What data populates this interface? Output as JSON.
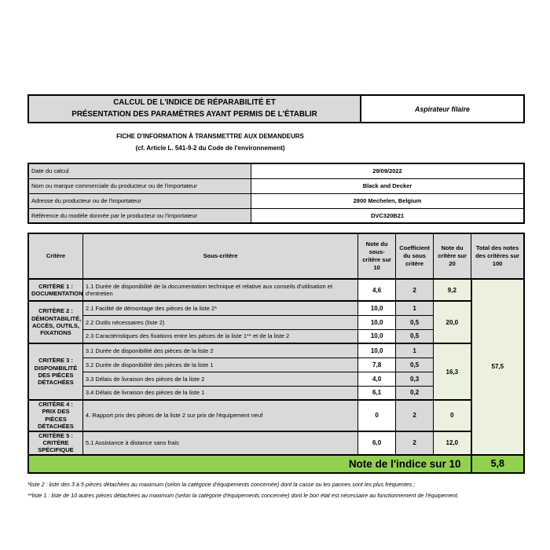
{
  "header": {
    "title_line1": "CALCUL DE L'INDICE DE RÉPARABILITÉ ET",
    "title_line2": "PRÉSENTATION DES PARAMÈTRES AYANT PERMIS DE L'ÉTABLIR",
    "product_category": "Aspirateur filaire",
    "subtitle_line1": "FICHE D'INFORMATION À TRANSMETTRE AUX DEMANDEURS",
    "subtitle_line2": "(cf. Article L. 541-9-2 du Code de l'environnement)"
  },
  "info": {
    "rows": [
      {
        "label": "Date du calcul",
        "value": "29/09/2022"
      },
      {
        "label": "Nom ou marque commerciale du producteur ou de l'importateur",
        "value": "Black and Decker"
      },
      {
        "label": "Adresse du producteur ou de l'importateur",
        "value": "2800 Mechelen, Belgium"
      },
      {
        "label": "Référence du modèle donnée par le producteur ou l'importateur",
        "value": "DVC320B21"
      }
    ]
  },
  "table": {
    "headers": {
      "critere": "Critère",
      "sous_critere": "Sous-critère",
      "note_sous": "Note du sous-critère sur 10",
      "coeff": "Coefficient du sous critère",
      "note20": "Note du critère sur 20",
      "total": "Total des notes des critères sur 100"
    },
    "criteria": [
      {
        "label": "CRITÈRE 1 : DOCUMENTATION",
        "note_sur_20": "9,2",
        "subs": [
          {
            "text": "1.1 Durée de disponibilité de la documentation technique et relative aux conseils d'utilisation et d'entretien",
            "note": "4,6",
            "coeff": "2"
          }
        ]
      },
      {
        "label": "CRITÈRE 2 : DÉMONTABILITÉ, ACCÈS, OUTILS, FIXATIONS",
        "note_sur_20": "20,0",
        "subs": [
          {
            "text": "2.1 Facilité de démontage des pièces de la liste 2*",
            "note": "10,0",
            "coeff": "1"
          },
          {
            "text": "2.2 Outils nécessaires (liste 2)",
            "note": "10,0",
            "coeff": "0,5"
          },
          {
            "text": "2.3 Caractéristiques des fixations entre les pièces de la liste 1** et de la liste 2",
            "note": "10,0",
            "coeff": "0,5"
          }
        ]
      },
      {
        "label": "CRITÈRE 3 : DISPONIBILITÉ DES PIÈCES DÉTACHÉES",
        "note_sur_20": "16,3",
        "subs": [
          {
            "text": "3.1 Durée de disponibilité des pièces de la liste 2",
            "note": "10,0",
            "coeff": "1"
          },
          {
            "text": "3.2 Durée de disponibilité des pièces de la liste 1",
            "note": "7,8",
            "coeff": "0,5"
          },
          {
            "text": "3.3 Délais de livraison des pièces de la liste 2",
            "note": "4,0",
            "coeff": "0,3"
          },
          {
            "text": "3.4 Délais de livraison des pièces de la liste 1",
            "note": "6,1",
            "coeff": "0,2"
          }
        ]
      },
      {
        "label": "CRITÈRE 4 : PRIX DES PIÈCES DÉTACHÉES",
        "note_sur_20": "0",
        "subs": [
          {
            "text": "4. Rapport prix des pièces de la liste 2 sur prix de l'équipement neuf",
            "note": "0",
            "coeff": "2"
          }
        ]
      },
      {
        "label": "CRITÈRE 5 : CRITÈRE SPÉCIFIQUE",
        "note_sur_20": "12,0",
        "subs": [
          {
            "text": "5.1 Assistance à distance sans frais",
            "note": "6,0",
            "coeff": "2"
          }
        ]
      }
    ],
    "total_over_100": "57,5",
    "final_label": "Note de l'indice sur 10",
    "final_value": "5,8"
  },
  "footnotes": [
    "*liste 2 : liste des 3 à 5 pièces détachées au maximum (selon la catégorie d'équipements concernée) dont la casse ou les pannes sont les plus fréquentes ;",
    "**liste 1 : liste de 10 autres pièces détachées au maximum (selon la catégorie d'équipements concernée) dont le bon état est nécessaire au fonctionnement de l'équipement."
  ],
  "colors": {
    "cell_gray": "#d9d9d9",
    "score_light_green": "#ebf1de",
    "index_bright_green": "#92d050"
  }
}
